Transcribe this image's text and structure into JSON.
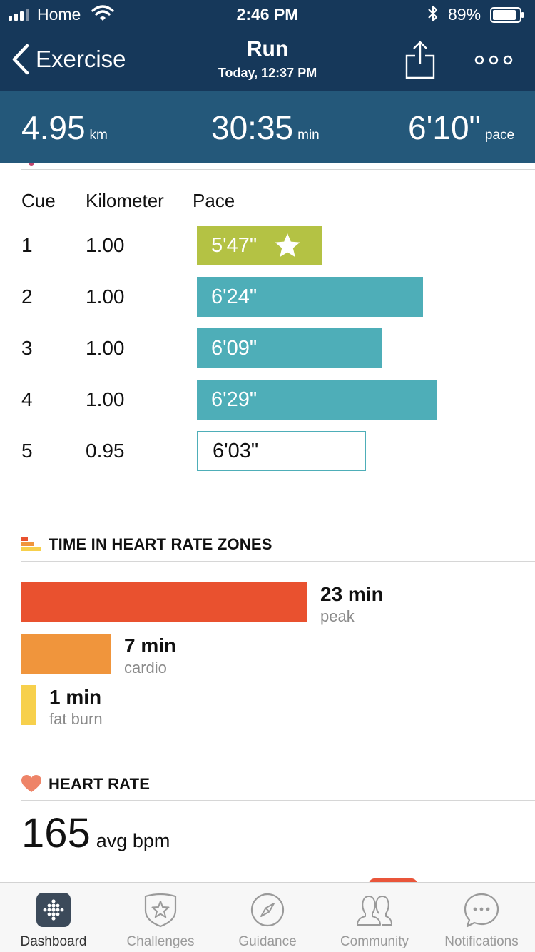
{
  "status_bar": {
    "carrier": "Home",
    "time": "2:46 PM",
    "battery_percent": "89%",
    "battery_level": 0.89
  },
  "header": {
    "back_label": "Exercise",
    "title": "Run",
    "subtitle": "Today, 12:37 PM",
    "share_icon": "share-icon",
    "more_icon": "more-options-icon"
  },
  "summary": {
    "distance": {
      "value": "4.95",
      "unit": "km"
    },
    "duration": {
      "value": "30:35",
      "unit": "min"
    },
    "pace": {
      "value": "6'10\"",
      "unit": "pace"
    }
  },
  "splits": {
    "headers": {
      "cue": "Cue",
      "km": "Kilometer",
      "pace": "Pace"
    },
    "rows": [
      {
        "cue": "1",
        "km": "1.00",
        "pace": "5'47\"",
        "pace_seconds": 347,
        "style": "fast",
        "badge_icon": "star-icon"
      },
      {
        "cue": "2",
        "km": "1.00",
        "pace": "6'24\"",
        "pace_seconds": 384,
        "style": "mid"
      },
      {
        "cue": "3",
        "km": "1.00",
        "pace": "6'09\"",
        "pace_seconds": 369,
        "style": "mid"
      },
      {
        "cue": "4",
        "km": "1.00",
        "pace": "6'29\"",
        "pace_seconds": 389,
        "style": "mid"
      },
      {
        "cue": "5",
        "km": "0.95",
        "pace": "6'03\"",
        "pace_seconds": 363,
        "style": "last"
      }
    ]
  },
  "hr_zones": {
    "title": "TIME IN HEART RATE ZONES",
    "icon": "zones-icon",
    "zones": [
      {
        "value": "23 min",
        "minutes": 23,
        "name": "peak",
        "color": "#e9512f"
      },
      {
        "value": "7 min",
        "minutes": 7,
        "name": "cardio",
        "color": "#f0953c"
      },
      {
        "value": "1 min",
        "minutes": 1,
        "name": "fat burn",
        "color": "#f7d04c"
      }
    ]
  },
  "heart_rate": {
    "title": "HEART RATE",
    "icon": "heart-icon",
    "value": "165",
    "unit": "avg bpm"
  },
  "tabs": [
    {
      "label": "Dashboard",
      "icon": "dashboard-icon",
      "active": true
    },
    {
      "label": "Challenges",
      "icon": "challenges-star-icon",
      "active": false
    },
    {
      "label": "Guidance",
      "icon": "compass-icon",
      "active": false
    },
    {
      "label": "Community",
      "icon": "people-icon",
      "active": false
    },
    {
      "label": "Notifications",
      "icon": "chat-bubble-icon",
      "active": false
    }
  ]
}
